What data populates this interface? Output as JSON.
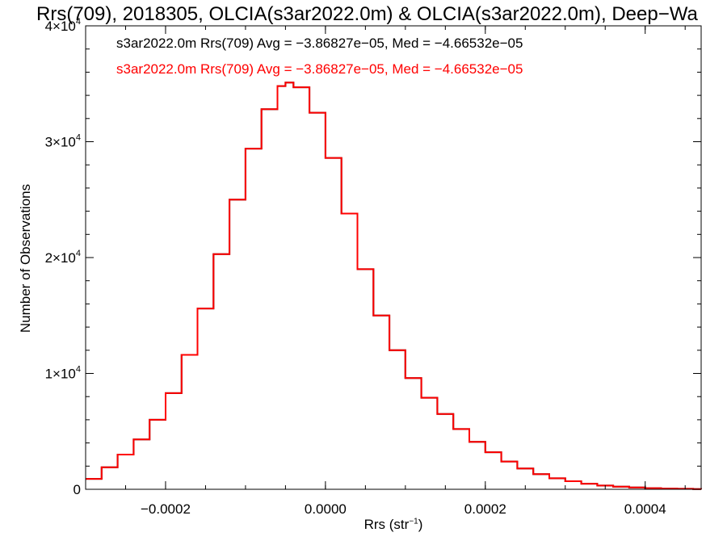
{
  "chart_data": {
    "type": "line",
    "title": "Rrs(709), 2018305, OLCIA(s3ar2022.0m) & OLCIA(s3ar2022.0m), Deep−Wa",
    "xlabel": "Rrs (str",
    "xlabel_sup": "−1",
    "xlabel_close": ")",
    "ylabel": "Number of Observations",
    "xlim": [
      -0.0003,
      0.00047
    ],
    "ylim": [
      0,
      40000
    ],
    "x_ticks": [
      {
        "value": -0.0002,
        "label": "−0.0002"
      },
      {
        "value": 0.0,
        "label": "0.0000"
      },
      {
        "value": 0.0002,
        "label": "0.0002"
      },
      {
        "value": 0.0004,
        "label": "0.0004"
      }
    ],
    "y_ticks": [
      {
        "value": 0,
        "label": "0",
        "sup": ""
      },
      {
        "value": 10000,
        "label": "1×10",
        "sup": "4"
      },
      {
        "value": 20000,
        "label": "2×10",
        "sup": "4"
      },
      {
        "value": 30000,
        "label": "3×10",
        "sup": "4"
      },
      {
        "value": 40000,
        "label": "4×10",
        "sup": "4"
      }
    ],
    "legend": [
      {
        "text": "s3ar2022.0m Rrs(709) Avg = −3.86827e−05, Med = −4.66532e−05",
        "color": "#000000"
      },
      {
        "text": "s3ar2022.0m Rrs(709) Avg = −3.86827e−05, Med = −4.66532e−05",
        "color": "#ff0000"
      }
    ],
    "series": [
      {
        "color": "#000000",
        "step": true,
        "x": [
          -0.0003,
          -0.00028,
          -0.00026,
          -0.00024,
          -0.00022,
          -0.0002,
          -0.00018,
          -0.00016,
          -0.00014,
          -0.00012,
          -0.0001,
          -8e-05,
          -6e-05,
          -5e-05,
          -4e-05,
          -2e-05,
          0.0,
          2e-05,
          4e-05,
          6e-05,
          8e-05,
          0.0001,
          0.00012,
          0.00014,
          0.00016,
          0.00018,
          0.0002,
          0.00022,
          0.00024,
          0.00026,
          0.00028,
          0.0003,
          0.00032,
          0.00034,
          0.00036,
          0.00038,
          0.0004,
          0.00042,
          0.00044,
          0.00046,
          0.00047
        ],
        "y": [
          900,
          1900,
          3000,
          4300,
          6000,
          8300,
          11600,
          15600,
          20300,
          25000,
          29400,
          32800,
          34800,
          35100,
          34700,
          32500,
          28600,
          23800,
          19000,
          15000,
          12000,
          9600,
          7900,
          6500,
          5200,
          4100,
          3200,
          2400,
          1800,
          1300,
          950,
          700,
          480,
          320,
          220,
          150,
          100,
          60,
          40,
          20,
          15
        ]
      },
      {
        "color": "#ff0000",
        "step": true,
        "x": [
          -0.0003,
          -0.00028,
          -0.00026,
          -0.00024,
          -0.00022,
          -0.0002,
          -0.00018,
          -0.00016,
          -0.00014,
          -0.00012,
          -0.0001,
          -8e-05,
          -6e-05,
          -5e-05,
          -4e-05,
          -2e-05,
          0.0,
          2e-05,
          4e-05,
          6e-05,
          8e-05,
          0.0001,
          0.00012,
          0.00014,
          0.00016,
          0.00018,
          0.0002,
          0.00022,
          0.00024,
          0.00026,
          0.00028,
          0.0003,
          0.00032,
          0.00034,
          0.00036,
          0.00038,
          0.0004,
          0.00042,
          0.00044,
          0.00046,
          0.00047
        ],
        "y": [
          900,
          1900,
          3000,
          4300,
          6000,
          8300,
          11600,
          15600,
          20300,
          25000,
          29400,
          32800,
          34800,
          35100,
          34700,
          32500,
          28600,
          23800,
          19000,
          15000,
          12000,
          9600,
          7900,
          6500,
          5200,
          4100,
          3200,
          2400,
          1800,
          1300,
          950,
          700,
          480,
          320,
          220,
          150,
          100,
          60,
          40,
          20,
          15
        ]
      }
    ]
  }
}
